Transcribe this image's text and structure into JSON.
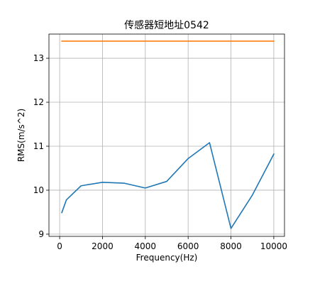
{
  "chart_data": {
    "type": "line",
    "title": "传感器短地址0542",
    "xlabel": "Frequency(Hz)",
    "ylabel": "RMS(m/s^2)",
    "xlim": [
      -500,
      10500
    ],
    "ylim": [
      8.95,
      13.55
    ],
    "xticks": [
      0,
      2000,
      4000,
      6000,
      8000,
      10000
    ],
    "xtick_labels": [
      "0",
      "2000",
      "4000",
      "6000",
      "8000",
      "10000"
    ],
    "yticks": [
      9,
      10,
      11,
      12,
      13
    ],
    "ytick_labels": [
      "9",
      "10",
      "11",
      "12",
      "13"
    ],
    "grid": true,
    "legend": false,
    "series": [
      {
        "color": "#1f77b4",
        "x": [
          100,
          315,
          1000,
          2000,
          3000,
          4000,
          5000,
          6000,
          7000,
          8000,
          9000,
          10000
        ],
        "y": [
          9.49,
          9.78,
          10.1,
          10.18,
          10.16,
          10.05,
          10.2,
          10.72,
          11.08,
          9.13,
          9.89,
          10.82
        ]
      },
      {
        "color": "#ff7f0e",
        "x": [
          100,
          10000
        ],
        "y": [
          13.39,
          13.39
        ]
      }
    ]
  }
}
